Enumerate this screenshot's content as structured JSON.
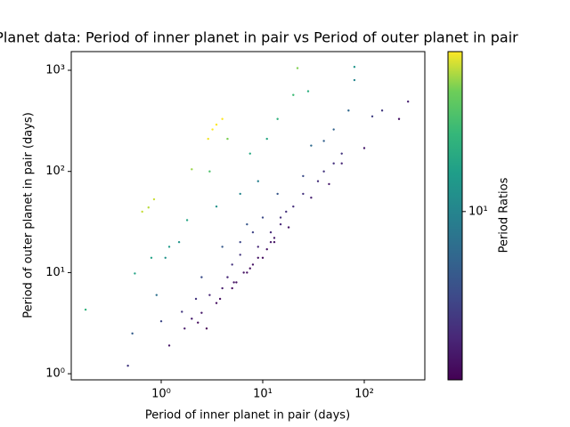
{
  "chart_data": {
    "type": "scatter",
    "title": "Planet data: Period of inner planet in pair vs Period of outer planet in pair",
    "x_label": "Period of inner planet in pair (days)",
    "y_label": "Period of outer planet in pair (days)",
    "colorbar_label": "Period Ratios",
    "colormap": "viridis",
    "x_scale": "log",
    "y_scale": "log",
    "color_scale": "log",
    "xlim": [
      0.13,
      395
    ],
    "ylim": [
      0.87,
      1530
    ],
    "clim": [
      1.2,
      75
    ],
    "xticks": [
      {
        "value": 1,
        "label": "10⁰"
      },
      {
        "value": 10,
        "label": "10¹"
      },
      {
        "value": 100,
        "label": "10²"
      }
    ],
    "yticks": [
      {
        "value": 1,
        "label": "10⁰"
      },
      {
        "value": 10,
        "label": "10¹"
      },
      {
        "value": 100,
        "label": "10²"
      },
      {
        "value": 1000,
        "label": "10³"
      }
    ],
    "cticks": [
      {
        "value": 10,
        "label": "10¹"
      }
    ],
    "x": [
      0.18,
      0.47,
      0.52,
      0.55,
      0.65,
      0.75,
      0.8,
      0.85,
      0.9,
      1.0,
      1.1,
      1.2,
      1.2,
      1.5,
      1.8,
      1.6,
      2.0,
      2.2,
      2.5,
      2.8,
      2.9,
      3.2,
      3.5,
      4,
      4.5,
      3,
      3.5,
      4,
      4.5,
      5,
      5.5,
      6,
      6.5,
      7,
      7.5,
      8,
      9,
      10,
      11,
      12,
      13,
      14,
      15,
      17,
      20,
      22,
      20,
      25,
      28,
      30,
      35,
      40,
      50,
      60,
      70,
      80,
      80,
      100,
      120,
      150,
      220,
      270,
      3,
      3.5,
      2,
      6,
      8,
      10,
      12,
      15,
      18,
      5,
      7,
      9,
      11,
      13,
      2.5,
      4,
      6,
      9,
      14,
      25,
      40,
      30,
      50,
      1.7,
      2.3,
      3.8,
      5.2,
      7.5,
      60,
      45
    ],
    "y": [
      4.3,
      1.2,
      2.5,
      9.8,
      40,
      44,
      14,
      53,
      6,
      3.3,
      14,
      1.9,
      18,
      20,
      33,
      4.1,
      105,
      5.5,
      4.0,
      2.8,
      210,
      260,
      290,
      330,
      210,
      100,
      45,
      7,
      9,
      12,
      8,
      15,
      10,
      30,
      150,
      12,
      18,
      14,
      210,
      25,
      20,
      330,
      30,
      40,
      45,
      1050,
      570,
      60,
      620,
      55,
      80,
      100,
      120,
      150,
      400,
      1080,
      800,
      170,
      350,
      400,
      330,
      490,
      6,
      5,
      3.5,
      20,
      25,
      35,
      20,
      35,
      28,
      7,
      10,
      14,
      17,
      22,
      9,
      18,
      60,
      80,
      60,
      90,
      200,
      180,
      260,
      2.8,
      3.2,
      5.5,
      8,
      11,
      120,
      75
    ]
  }
}
